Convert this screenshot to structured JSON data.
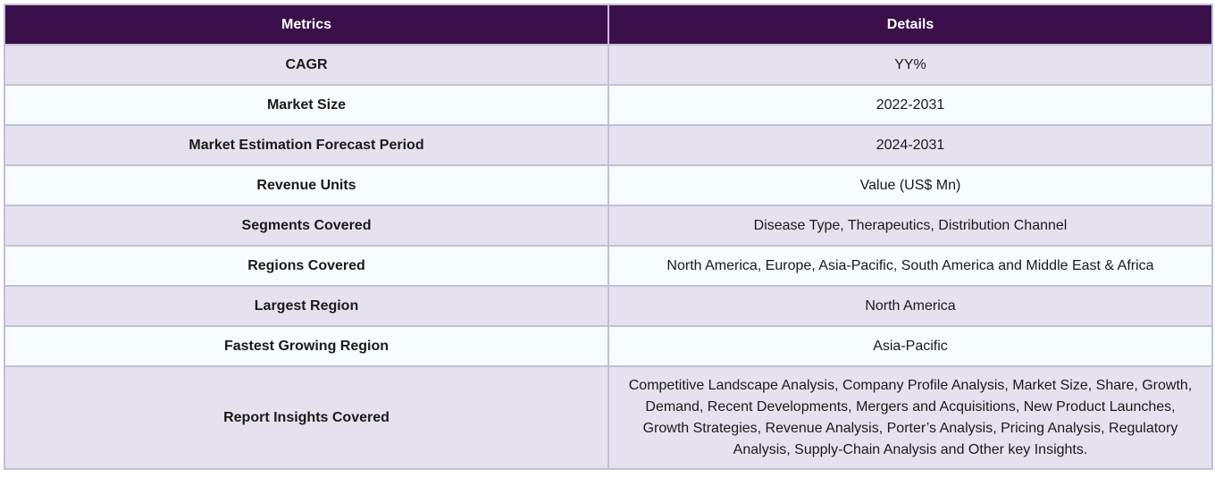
{
  "table": {
    "headers": [
      "Metrics",
      "Details"
    ],
    "rows": [
      {
        "metric": "CAGR",
        "details": "YY%"
      },
      {
        "metric": "Market Size",
        "details": "2022-2031"
      },
      {
        "metric": "Market Estimation Forecast Period",
        "details": "2024-2031"
      },
      {
        "metric": "Revenue Units",
        "details": "Value (US$ Mn)"
      },
      {
        "metric": "Segments Covered",
        "details": "Disease Type, Therapeutics, Distribution Channel"
      },
      {
        "metric": "Regions Covered",
        "details": "North America, Europe, Asia-Pacific, South America and Middle East & Africa"
      },
      {
        "metric": "Largest Region",
        "details": "North America"
      },
      {
        "metric": "Fastest Growing Region",
        "details": "Asia-Pacific"
      },
      {
        "metric": "Report Insights Covered",
        "details": "Competitive Landscape Analysis, Company Profile Analysis, Market Size, Share, Growth, Demand, Recent Developments, Mergers and Acquisitions, New Product Launches, Growth Strategies, Revenue Analysis, Porter’s Analysis, Pricing Analysis, Regulatory Analysis, Supply-Chain Analysis and Other key Insights."
      }
    ]
  },
  "colors": {
    "header_bg": "#3a0f4a",
    "row_odd_bg": "#e6e1ee",
    "row_even_bg": "#f5fbfe",
    "border": "#c2bfd9"
  }
}
